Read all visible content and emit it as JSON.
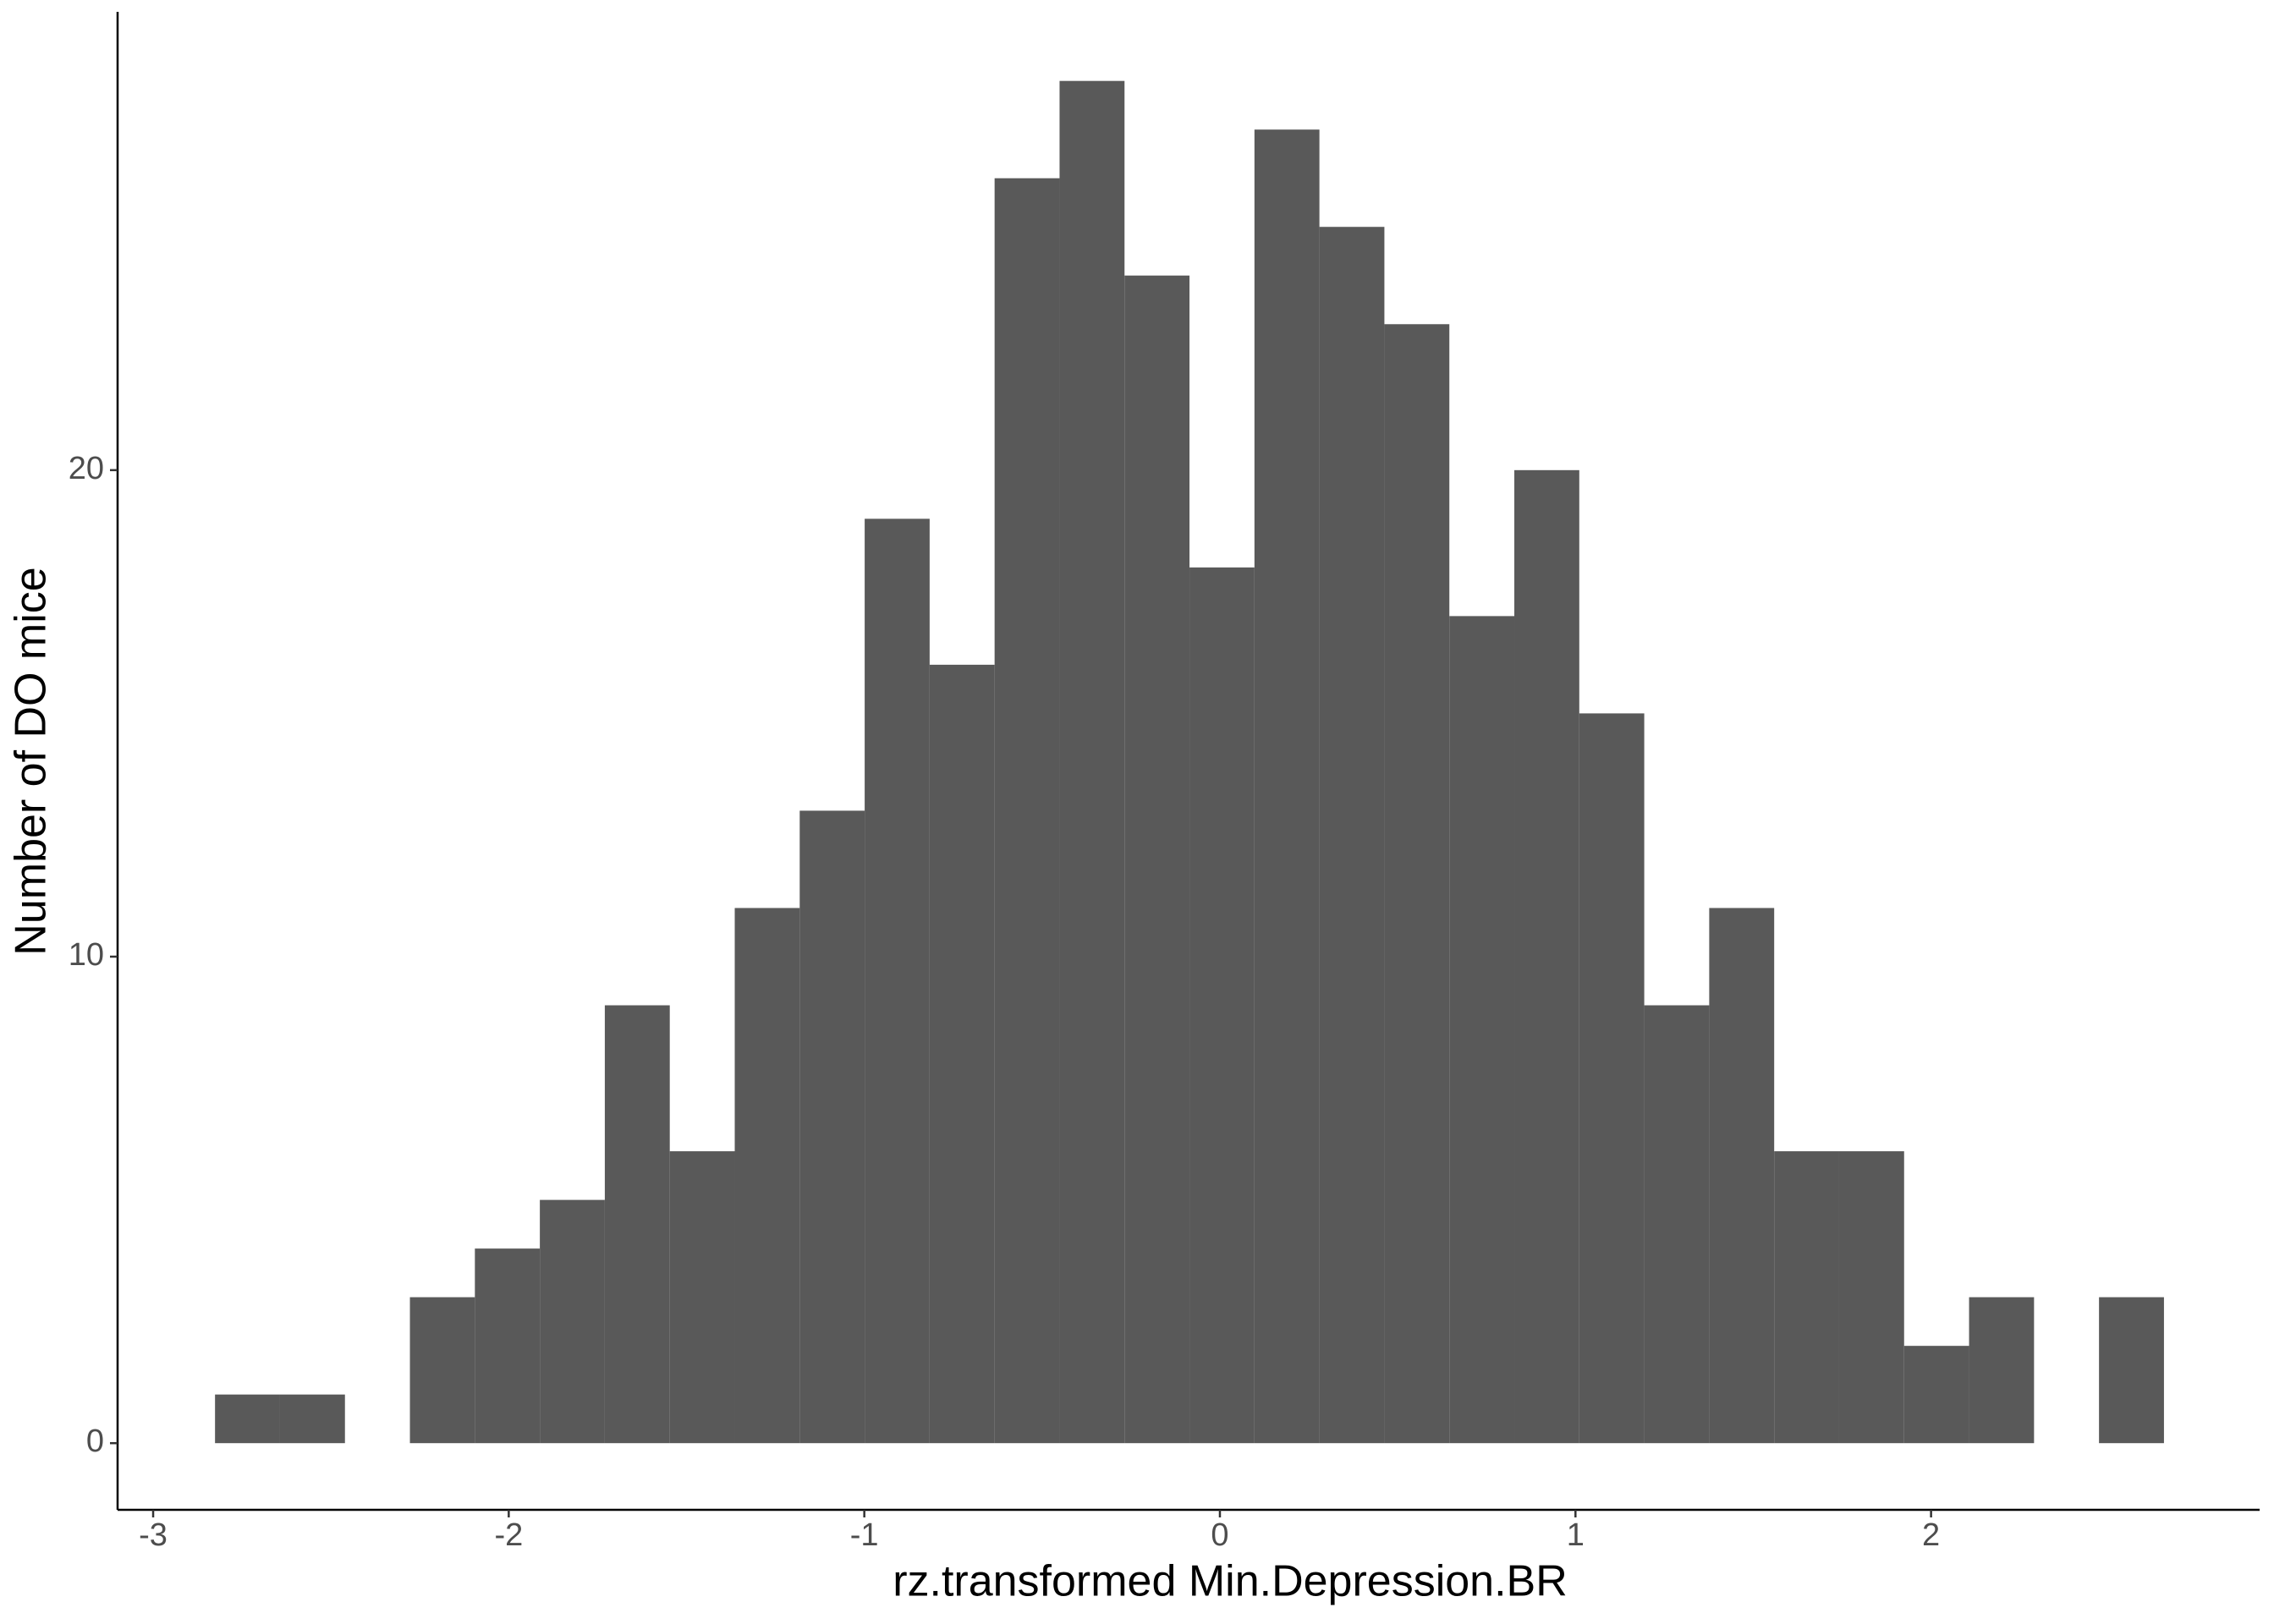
{
  "chart_data": {
    "type": "histogram",
    "x_label": "rz.transformed Min.Depression.BR",
    "y_label": "Number of DO mice",
    "bins": [
      -2.826,
      -2.6433,
      -2.4606,
      -2.2779,
      -2.0952,
      -1.9125,
      -1.7298,
      -1.5471,
      -1.3644,
      -1.1817,
      -0.999,
      -0.8163,
      -0.6336,
      -0.4509,
      -0.2682,
      -0.0855,
      0.0972,
      0.2799,
      0.4626,
      0.6453,
      0.828,
      1.0107,
      1.1934,
      1.3761,
      1.5588,
      1.7415,
      1.9242,
      2.1069,
      2.2896,
      2.4723,
      2.655
    ],
    "values": [
      1,
      1,
      0,
      3,
      4,
      5,
      9,
      6,
      11,
      13,
      19,
      16,
      26,
      28,
      24,
      18,
      27,
      25,
      23,
      17,
      20,
      15,
      9,
      11,
      6,
      6,
      2,
      3,
      0,
      3
    ],
    "color": "#595959",
    "xlim": [
      -3.1,
      2.924
    ],
    "xticks": [
      -3,
      -2,
      -1,
      0,
      1,
      2
    ],
    "ylim": [
      -1.37,
      29.42
    ],
    "yticks": [
      0,
      10,
      20
    ],
    "grid": false
  }
}
